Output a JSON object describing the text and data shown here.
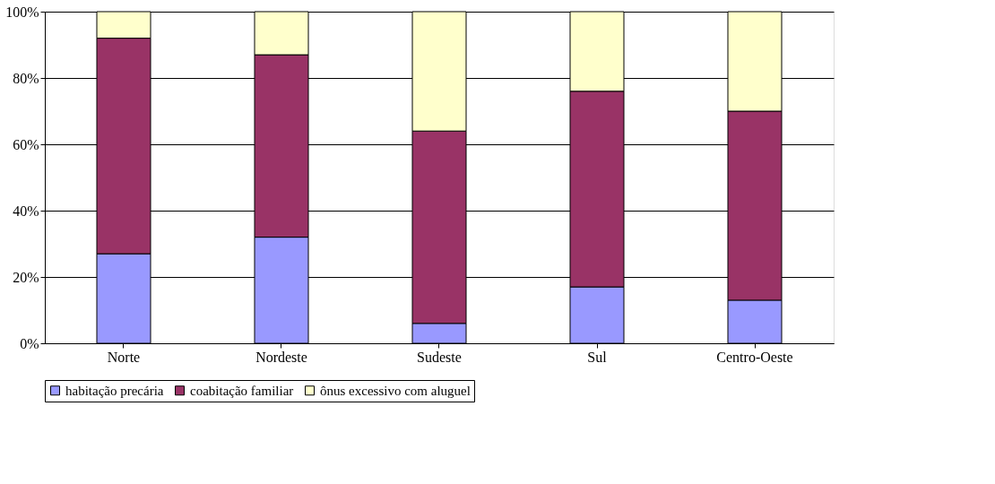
{
  "chart_data": {
    "type": "bar",
    "stacked": true,
    "categories": [
      "Norte",
      "Nordeste",
      "Sudeste",
      "Sul",
      "Centro-Oeste"
    ],
    "series": [
      {
        "name": "habitação precária",
        "color": "#9999ff",
        "values": [
          27,
          32,
          6,
          17,
          13
        ]
      },
      {
        "name": "coabitação familiar",
        "color": "#993366",
        "values": [
          65,
          55,
          58,
          59,
          57
        ]
      },
      {
        "name": "ônus excessivo com aluguel",
        "color": "#ffffcc",
        "values": [
          8,
          13,
          36,
          24,
          30
        ]
      }
    ],
    "ylim": [
      0,
      100
    ],
    "yticks": [
      {
        "value": 0,
        "label": "0%"
      },
      {
        "value": 20,
        "label": "20%"
      },
      {
        "value": 40,
        "label": "40%"
      },
      {
        "value": 60,
        "label": "60%"
      },
      {
        "value": 80,
        "label": "80%"
      },
      {
        "value": 100,
        "label": "100%"
      }
    ],
    "grid": "y",
    "legend": "bottom"
  }
}
